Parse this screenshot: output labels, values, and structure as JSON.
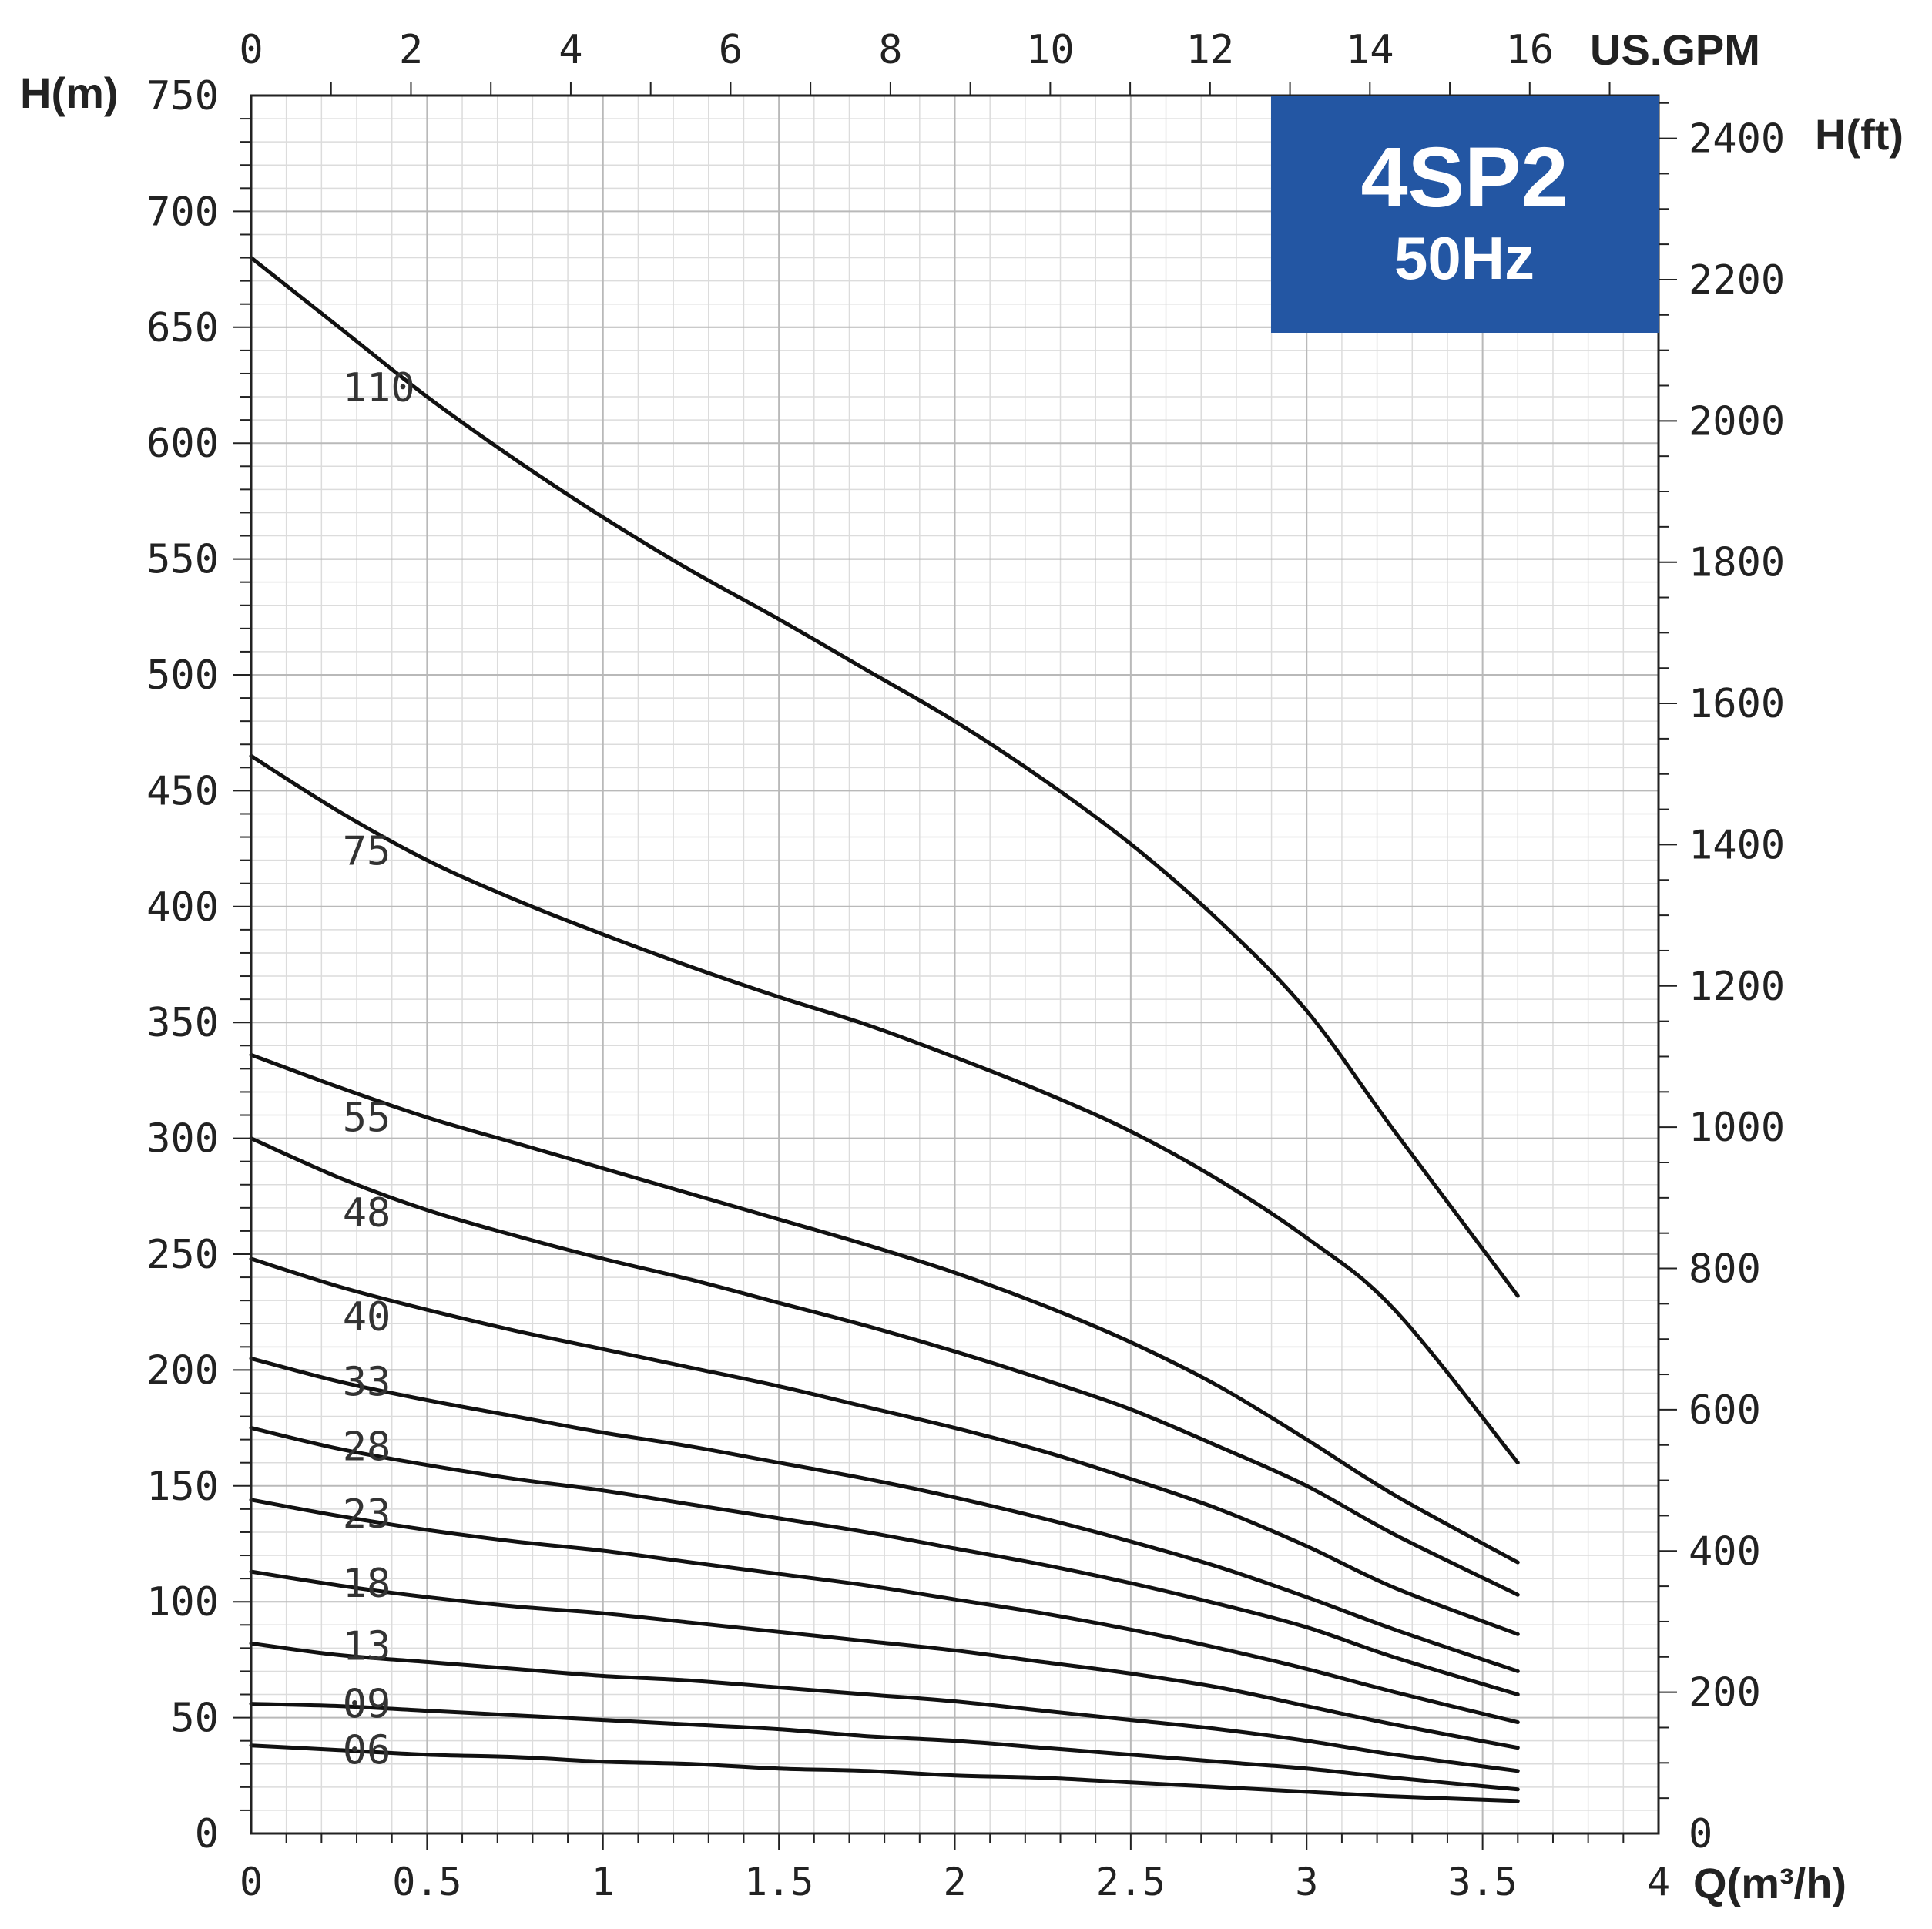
{
  "chart_data": {
    "type": "line",
    "title": "4SP2",
    "subtitle": "50Hz",
    "badge_color": "#2356a3",
    "line_color": "#111111",
    "grid": true,
    "xlabel": "Q(m³/h)",
    "xlabel_top": "US.GPM",
    "ylabel": "H(m)",
    "ylabel_right": "H(ft)",
    "xlim": [
      0,
      4
    ],
    "ylim": [
      0,
      750
    ],
    "x_ticks": [
      "0",
      "0.5",
      "1",
      "1.5",
      "2",
      "2.5",
      "3",
      "3.5",
      "4"
    ],
    "x_ticks_top": [
      "0",
      "2",
      "4",
      "6",
      "8",
      "10",
      "12",
      "14",
      "16"
    ],
    "y_ticks": [
      "0",
      "50",
      "100",
      "150",
      "200",
      "250",
      "300",
      "350",
      "400",
      "450",
      "500",
      "550",
      "600",
      "650",
      "700",
      "750"
    ],
    "y_ticks_right": [
      "0",
      "200",
      "400",
      "600",
      "800",
      "1000",
      "1200",
      "1400",
      "1600",
      "1800",
      "2000",
      "2200",
      "2400"
    ],
    "series": [
      {
        "name": "110",
        "label_x": 0.26,
        "label_y": 624,
        "x": [
          0,
          0.25,
          0.5,
          0.75,
          1,
          1.25,
          1.5,
          1.75,
          2,
          2.25,
          2.5,
          2.75,
          3,
          3.25,
          3.6
        ],
        "y": [
          680,
          650,
          620,
          593,
          568,
          545,
          524,
          502,
          480,
          455,
          427,
          394,
          355,
          303,
          232
        ]
      },
      {
        "name": "75",
        "label_x": 0.26,
        "label_y": 424,
        "x": [
          0,
          0.25,
          0.5,
          0.75,
          1,
          1.25,
          1.5,
          1.75,
          2,
          2.25,
          2.5,
          2.75,
          3,
          3.25,
          3.6
        ],
        "y": [
          465,
          441,
          420,
          403,
          388,
          374,
          361,
          349,
          335,
          320,
          303,
          282,
          257,
          226,
          160
        ]
      },
      {
        "name": "55",
        "label_x": 0.26,
        "label_y": 309,
        "x": [
          0,
          0.25,
          0.5,
          0.75,
          1,
          1.25,
          1.5,
          1.75,
          2,
          2.25,
          2.5,
          2.75,
          3,
          3.25,
          3.6
        ],
        "y": [
          336,
          322,
          309,
          298,
          287,
          276,
          265,
          254,
          242,
          228,
          212,
          193,
          170,
          146,
          117
        ]
      },
      {
        "name": "48",
        "label_x": 0.26,
        "label_y": 268,
        "x": [
          0,
          0.25,
          0.5,
          0.75,
          1,
          1.25,
          1.5,
          1.75,
          2,
          2.25,
          2.5,
          2.75,
          3,
          3.25,
          3.6
        ],
        "y": [
          300,
          283,
          269,
          258,
          248,
          239,
          229,
          219,
          208,
          196,
          183,
          167,
          150,
          129,
          103
        ]
      },
      {
        "name": "40",
        "label_x": 0.26,
        "label_y": 223,
        "x": [
          0,
          0.25,
          0.5,
          0.75,
          1,
          1.25,
          1.5,
          1.75,
          2,
          2.25,
          2.5,
          2.75,
          3,
          3.25,
          3.6
        ],
        "y": [
          248,
          236,
          226,
          217,
          209,
          201,
          193,
          184,
          175,
          165,
          153,
          140,
          124,
          106,
          86
        ]
      },
      {
        "name": "33",
        "label_x": 0.26,
        "label_y": 195,
        "x": [
          0,
          0.25,
          0.5,
          0.75,
          1,
          1.25,
          1.5,
          1.75,
          2,
          2.25,
          2.5,
          2.75,
          3,
          3.25,
          3.6
        ],
        "y": [
          205,
          195,
          187,
          180,
          173,
          167,
          160,
          153,
          145,
          136,
          126,
          115,
          102,
          88,
          70
        ]
      },
      {
        "name": "28",
        "label_x": 0.26,
        "label_y": 167,
        "x": [
          0,
          0.25,
          0.5,
          0.75,
          1,
          1.25,
          1.5,
          1.75,
          2,
          2.25,
          2.5,
          2.75,
          3,
          3.25,
          3.6
        ],
        "y": [
          175,
          166,
          159,
          153,
          148,
          142,
          136,
          130,
          123,
          116,
          108,
          99,
          89,
          76,
          60
        ]
      },
      {
        "name": "23",
        "label_x": 0.26,
        "label_y": 138,
        "x": [
          0,
          0.25,
          0.5,
          0.75,
          1,
          1.25,
          1.5,
          1.75,
          2,
          2.25,
          2.5,
          2.75,
          3,
          3.25,
          3.6
        ],
        "y": [
          144,
          137,
          131,
          126,
          122,
          117,
          112,
          107,
          101,
          95,
          88,
          80,
          71,
          61,
          48
        ]
      },
      {
        "name": "18",
        "label_x": 0.26,
        "label_y": 108,
        "x": [
          0,
          0.25,
          0.5,
          0.75,
          1,
          1.25,
          1.5,
          1.75,
          2,
          2.25,
          2.5,
          2.75,
          3,
          3.25,
          3.6
        ],
        "y": [
          113,
          107,
          102,
          98,
          95,
          91,
          87,
          83,
          79,
          74,
          69,
          63,
          55,
          47,
          37
        ]
      },
      {
        "name": "13",
        "label_x": 0.26,
        "label_y": 81,
        "x": [
          0,
          0.25,
          0.5,
          0.75,
          1,
          1.25,
          1.5,
          1.75,
          2,
          2.25,
          2.5,
          2.75,
          3,
          3.25,
          3.6
        ],
        "y": [
          82,
          77,
          74,
          71,
          68,
          66,
          63,
          60,
          57,
          53,
          49,
          45,
          40,
          34,
          27
        ]
      },
      {
        "name": "09",
        "label_x": 0.26,
        "label_y": 56,
        "x": [
          0,
          0.25,
          0.5,
          0.75,
          1,
          1.25,
          1.5,
          1.75,
          2,
          2.25,
          2.5,
          2.75,
          3,
          3.25,
          3.6
        ],
        "y": [
          56,
          55,
          53,
          51,
          49,
          47,
          45,
          42,
          40,
          37,
          34,
          31,
          28,
          24,
          19
        ]
      },
      {
        "name": "06",
        "label_x": 0.26,
        "label_y": 36,
        "x": [
          0,
          0.25,
          0.5,
          0.75,
          1,
          1.25,
          1.5,
          1.75,
          2,
          2.25,
          2.5,
          2.75,
          3,
          3.25,
          3.6
        ],
        "y": [
          38,
          36,
          34,
          33,
          31,
          30,
          28,
          27,
          25,
          24,
          22,
          20,
          18,
          16,
          14
        ]
      }
    ]
  }
}
